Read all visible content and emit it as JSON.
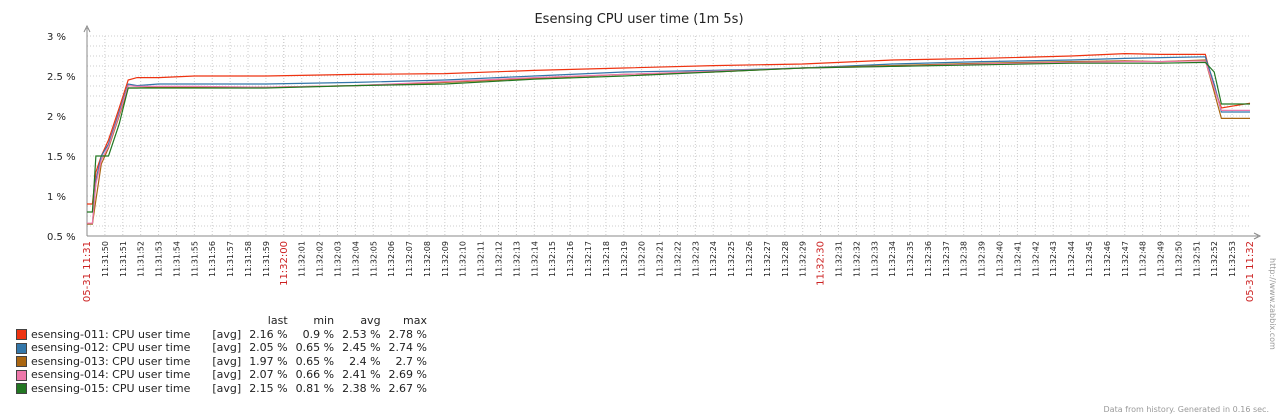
{
  "chart_data": {
    "type": "line",
    "title": "Esensing CPU user time (1m 5s)",
    "y_ticks": [
      "0.5 %",
      "1 %",
      "1.5 %",
      "2 %",
      "2.5 %",
      "3 %"
    ],
    "ylim": [
      0.5,
      3
    ],
    "grid": true,
    "x_start_label": "05-31 11:31",
    "x_end_label": "05-31 11:32",
    "x_labels": [
      "11:31:50",
      "11:31:51",
      "11:31:52",
      "11:31:53",
      "11:31:54",
      "11:31:55",
      "11:31:56",
      "11:31:57",
      "11:31:58",
      "11:31:59",
      "11:32:00",
      "11:32:01",
      "11:32:02",
      "11:32:03",
      "11:32:04",
      "11:32:05",
      "11:32:06",
      "11:32:07",
      "11:32:08",
      "11:32:09",
      "11:32:10",
      "11:32:11",
      "11:32:12",
      "11:32:13",
      "11:32:14",
      "11:32:15",
      "11:32:16",
      "11:32:17",
      "11:32:18",
      "11:32:19",
      "11:32:20",
      "11:32:21",
      "11:32:22",
      "11:32:23",
      "11:32:24",
      "11:32:25",
      "11:32:26",
      "11:32:27",
      "11:32:28",
      "11:32:29",
      "11:32:30",
      "11:32:31",
      "11:32:32",
      "11:32:33",
      "11:32:34",
      "11:32:35",
      "11:32:36",
      "11:32:37",
      "11:32:38",
      "11:32:39",
      "11:32:40",
      "11:32:41",
      "11:32:42",
      "11:32:43",
      "11:32:44",
      "11:32:45",
      "11:32:46",
      "11:32:47",
      "11:32:48",
      "11:32:49",
      "11:32:50",
      "11:32:51",
      "11:32:52",
      "11:32:53"
    ],
    "highlight_labels": [
      "11:32:00",
      "11:32:30"
    ],
    "legend_headers": {
      "last": "last",
      "min": "min",
      "avg": "avg",
      "max": "max"
    },
    "series": [
      {
        "name": "esensing-011: CPU user time",
        "agg": "[avg]",
        "color": "#ee3311",
        "last": "2.16 %",
        "min": "0.9 %",
        "avg": "2.53 %",
        "max": "2.78 %",
        "points": [
          [
            0,
            0.9
          ],
          [
            3,
            0.9
          ],
          [
            5,
            1.3
          ],
          [
            8,
            1.5
          ],
          [
            12,
            1.7
          ],
          [
            18,
            2.1
          ],
          [
            23,
            2.45
          ],
          [
            28,
            2.48
          ],
          [
            40,
            2.48
          ],
          [
            60,
            2.5
          ],
          [
            100,
            2.5
          ],
          [
            150,
            2.52
          ],
          [
            200,
            2.53
          ],
          [
            250,
            2.57
          ],
          [
            300,
            2.6
          ],
          [
            350,
            2.63
          ],
          [
            400,
            2.65
          ],
          [
            450,
            2.7
          ],
          [
            500,
            2.72
          ],
          [
            550,
            2.75
          ],
          [
            580,
            2.78
          ],
          [
            600,
            2.77
          ],
          [
            625,
            2.77
          ],
          [
            630,
            2.35
          ],
          [
            634,
            2.1
          ],
          [
            650,
            2.16
          ]
        ]
      },
      {
        "name": "esensing-012: CPU user time",
        "agg": "[avg]",
        "color": "#3377aa",
        "last": "2.05 %",
        "min": "0.65 %",
        "avg": "2.45 %",
        "max": "2.74 %",
        "points": [
          [
            0,
            0.65
          ],
          [
            3,
            0.65
          ],
          [
            5,
            1.2
          ],
          [
            8,
            1.5
          ],
          [
            12,
            1.65
          ],
          [
            18,
            2.05
          ],
          [
            23,
            2.4
          ],
          [
            28,
            2.38
          ],
          [
            40,
            2.4
          ],
          [
            60,
            2.4
          ],
          [
            100,
            2.4
          ],
          [
            150,
            2.42
          ],
          [
            200,
            2.45
          ],
          [
            250,
            2.5
          ],
          [
            300,
            2.55
          ],
          [
            350,
            2.57
          ],
          [
            400,
            2.6
          ],
          [
            450,
            2.65
          ],
          [
            500,
            2.68
          ],
          [
            550,
            2.7
          ],
          [
            580,
            2.72
          ],
          [
            600,
            2.73
          ],
          [
            625,
            2.74
          ],
          [
            630,
            2.4
          ],
          [
            634,
            2.05
          ],
          [
            650,
            2.05
          ]
        ]
      },
      {
        "name": "esensing-013: CPU user time",
        "agg": "[avg]",
        "color": "#aa6611",
        "last": "1.97 %",
        "min": "0.65 %",
        "avg": "2.4 %",
        "max": "2.7 %",
        "points": [
          [
            0,
            0.65
          ],
          [
            3,
            0.65
          ],
          [
            5,
            0.95
          ],
          [
            8,
            1.4
          ],
          [
            12,
            1.6
          ],
          [
            18,
            2.0
          ],
          [
            23,
            2.35
          ],
          [
            28,
            2.35
          ],
          [
            40,
            2.36
          ],
          [
            60,
            2.36
          ],
          [
            100,
            2.36
          ],
          [
            150,
            2.38
          ],
          [
            200,
            2.42
          ],
          [
            250,
            2.47
          ],
          [
            300,
            2.52
          ],
          [
            350,
            2.55
          ],
          [
            400,
            2.6
          ],
          [
            450,
            2.63
          ],
          [
            500,
            2.66
          ],
          [
            550,
            2.68
          ],
          [
            580,
            2.69
          ],
          [
            600,
            2.68
          ],
          [
            625,
            2.7
          ],
          [
            630,
            2.3
          ],
          [
            634,
            1.97
          ],
          [
            650,
            1.97
          ]
        ]
      },
      {
        "name": "esensing-014: CPU user time",
        "agg": "[avg]",
        "color": "#ee77aa",
        "last": "2.07 %",
        "min": "0.66 %",
        "avg": "2.41 %",
        "max": "2.69 %",
        "points": [
          [
            0,
            0.66
          ],
          [
            3,
            0.66
          ],
          [
            5,
            1.15
          ],
          [
            8,
            1.45
          ],
          [
            12,
            1.62
          ],
          [
            18,
            2.02
          ],
          [
            23,
            2.38
          ],
          [
            28,
            2.37
          ],
          [
            40,
            2.37
          ],
          [
            60,
            2.37
          ],
          [
            100,
            2.36
          ],
          [
            150,
            2.38
          ],
          [
            200,
            2.43
          ],
          [
            250,
            2.48
          ],
          [
            300,
            2.52
          ],
          [
            350,
            2.56
          ],
          [
            400,
            2.6
          ],
          [
            450,
            2.62
          ],
          [
            500,
            2.65
          ],
          [
            550,
            2.67
          ],
          [
            580,
            2.68
          ],
          [
            600,
            2.68
          ],
          [
            625,
            2.69
          ],
          [
            630,
            2.35
          ],
          [
            634,
            2.07
          ],
          [
            650,
            2.07
          ]
        ]
      },
      {
        "name": "esensing-015: CPU user time",
        "agg": "[avg]",
        "color": "#227722",
        "last": "2.15 %",
        "min": "0.81 %",
        "avg": "2.38 %",
        "max": "2.67 %",
        "points": [
          [
            0,
            0.8
          ],
          [
            3,
            0.8
          ],
          [
            5,
            1.5
          ],
          [
            8,
            1.5
          ],
          [
            12,
            1.5
          ],
          [
            18,
            1.9
          ],
          [
            23,
            2.35
          ],
          [
            28,
            2.35
          ],
          [
            40,
            2.35
          ],
          [
            60,
            2.35
          ],
          [
            100,
            2.35
          ],
          [
            150,
            2.38
          ],
          [
            200,
            2.4
          ],
          [
            250,
            2.46
          ],
          [
            300,
            2.5
          ],
          [
            350,
            2.55
          ],
          [
            400,
            2.6
          ],
          [
            450,
            2.62
          ],
          [
            500,
            2.64
          ],
          [
            550,
            2.66
          ],
          [
            580,
            2.66
          ],
          [
            600,
            2.66
          ],
          [
            625,
            2.67
          ],
          [
            630,
            2.55
          ],
          [
            634,
            2.15
          ],
          [
            650,
            2.15
          ]
        ]
      }
    ]
  },
  "footer_text": "Data from history. Generated in 0.16 sec.",
  "watermark_text": "http://www.zabbix.com"
}
